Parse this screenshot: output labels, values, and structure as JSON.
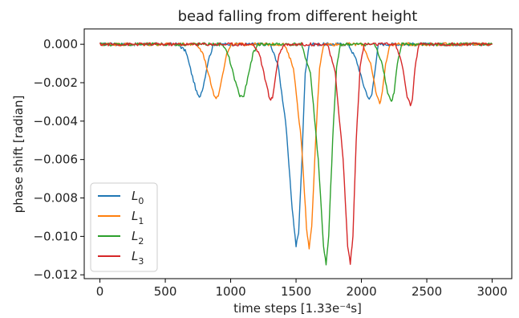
{
  "chart_data": {
    "type": "line",
    "title": "bead falling from different height",
    "xlabel": "time steps [1.33e⁻⁴s]",
    "ylabel": "phase shift [radian]",
    "xlim": [
      -120,
      3150
    ],
    "ylim": [
      -0.0122,
      0.0008
    ],
    "xticks": [
      0,
      500,
      1000,
      1500,
      2000,
      2500,
      3000
    ],
    "yticks": [
      0.0,
      -0.002,
      -0.004,
      -0.006,
      -0.008,
      -0.01,
      -0.012
    ],
    "ytick_labels": [
      "0.000",
      "−0.002",
      "−0.004",
      "−0.006",
      "−0.008",
      "−0.010",
      "−0.012"
    ],
    "legend_position": "lower-left",
    "series": [
      {
        "name": "L",
        "subscript": "0",
        "color": "#1f77b4",
        "x": [
          0,
          600,
          660,
          700,
          740,
          760,
          790,
          830,
          870,
          1300,
          1360,
          1420,
          1470,
          1500,
          1520,
          1545,
          1570,
          1600,
          1900,
          1960,
          2020,
          2060,
          2080,
          2100,
          2130,
          3000
        ],
        "y": [
          0,
          0,
          -0.0004,
          -0.0015,
          -0.0025,
          -0.0028,
          -0.0022,
          -0.0008,
          0,
          0,
          -0.001,
          -0.004,
          -0.0085,
          -0.0105,
          -0.0098,
          -0.006,
          -0.0015,
          0,
          0,
          -0.0008,
          -0.0022,
          -0.0029,
          -0.0026,
          -0.0015,
          0,
          0
        ]
      },
      {
        "name": "L",
        "subscript": "1",
        "color": "#ff7f0e",
        "x": [
          0,
          740,
          790,
          840,
          880,
          905,
          930,
          970,
          1010,
          1410,
          1480,
          1540,
          1580,
          1600,
          1620,
          1650,
          1680,
          1710,
          2010,
          2070,
          2110,
          2140,
          2160,
          2185,
          2220,
          3000
        ],
        "y": [
          0,
          0,
          -0.0005,
          -0.0018,
          -0.0028,
          -0.0027,
          -0.0018,
          -0.0005,
          0,
          0,
          -0.0012,
          -0.005,
          -0.0095,
          -0.0107,
          -0.0095,
          -0.005,
          -0.0012,
          0,
          0,
          -0.001,
          -0.0025,
          -0.0031,
          -0.0025,
          -0.001,
          0,
          0
        ]
      },
      {
        "name": "L",
        "subscript": "2",
        "color": "#2ca02c",
        "x": [
          0,
          930,
          980,
          1030,
          1070,
          1100,
          1130,
          1170,
          1210,
          1540,
          1610,
          1670,
          1710,
          1730,
          1750,
          1780,
          1810,
          1840,
          2100,
          2160,
          2200,
          2230,
          2250,
          2275,
          2310,
          3000
        ],
        "y": [
          0,
          0,
          -0.0005,
          -0.0018,
          -0.0027,
          -0.0027,
          -0.0018,
          -0.0005,
          0,
          0,
          -0.0015,
          -0.006,
          -0.0105,
          -0.0115,
          -0.01,
          -0.005,
          -0.0012,
          0,
          0,
          -0.001,
          -0.0025,
          -0.003,
          -0.0025,
          -0.001,
          0,
          0
        ]
      },
      {
        "name": "L",
        "subscript": "3",
        "color": "#d62728",
        "x": [
          0,
          1170,
          1220,
          1270,
          1300,
          1320,
          1340,
          1370,
          1410,
          1740,
          1800,
          1860,
          1895,
          1915,
          1935,
          1960,
          1990,
          2020,
          2260,
          2310,
          2350,
          2375,
          2390,
          2410,
          2440,
          3000
        ],
        "y": [
          0,
          0,
          -0.0005,
          -0.002,
          -0.0029,
          -0.0028,
          -0.0018,
          -0.0005,
          0,
          0,
          -0.0015,
          -0.006,
          -0.0105,
          -0.0114,
          -0.01,
          -0.005,
          -0.0012,
          0,
          0,
          -0.001,
          -0.0027,
          -0.0032,
          -0.0028,
          -0.0012,
          0,
          0
        ]
      }
    ]
  }
}
